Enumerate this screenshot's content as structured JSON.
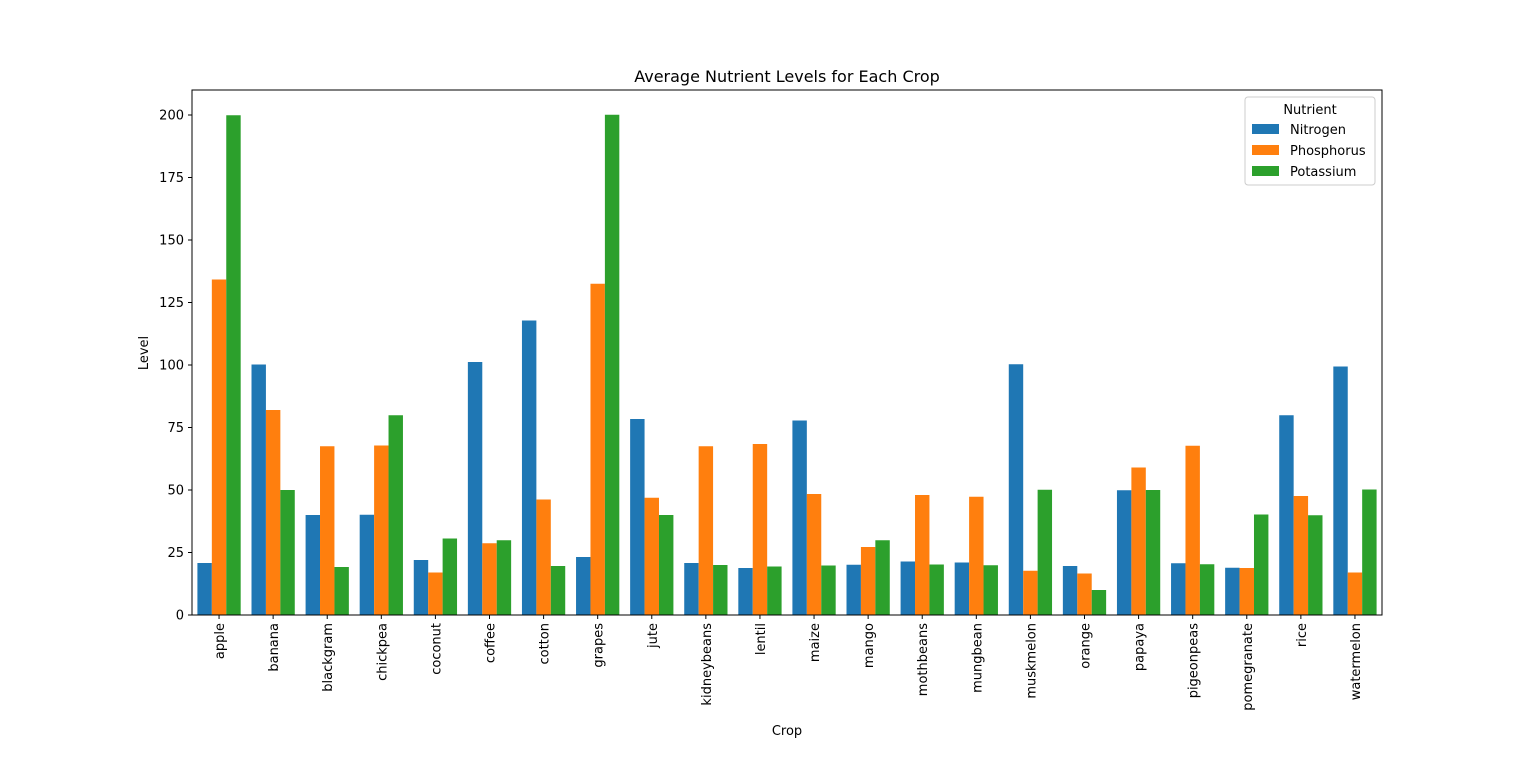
{
  "chart_data": {
    "type": "bar",
    "title": "Average Nutrient Levels for Each Crop",
    "xlabel": "Crop",
    "ylabel": "Level",
    "ylim": [
      0,
      210
    ],
    "yticks": [
      0,
      25,
      50,
      75,
      100,
      125,
      150,
      175,
      200
    ],
    "grid": false,
    "legend": {
      "title": "Nutrient",
      "placement": "top-right"
    },
    "categories": [
      "apple",
      "banana",
      "blackgram",
      "chickpea",
      "coconut",
      "coffee",
      "cotton",
      "grapes",
      "jute",
      "kidneybeans",
      "lentil",
      "maize",
      "mango",
      "mothbeans",
      "mungbean",
      "muskmelon",
      "orange",
      "papaya",
      "pigeonpeas",
      "pomegranate",
      "rice",
      "watermelon"
    ],
    "series": [
      {
        "name": "Nitrogen",
        "color": "#1f77b4",
        "values": [
          20.8,
          100.2,
          40.0,
          40.1,
          22.0,
          101.2,
          117.8,
          23.2,
          78.4,
          20.8,
          18.8,
          77.8,
          20.1,
          21.4,
          21.0,
          100.3,
          19.6,
          49.9,
          20.7,
          18.9,
          79.9,
          99.4
        ]
      },
      {
        "name": "Phosphorus",
        "color": "#ff7f0e",
        "values": [
          134.2,
          82.0,
          67.5,
          67.8,
          17.0,
          28.7,
          46.2,
          132.5,
          46.9,
          67.5,
          68.4,
          48.4,
          27.2,
          48.0,
          47.3,
          17.7,
          16.6,
          59.0,
          67.7,
          18.8,
          47.6,
          17.0
        ]
      },
      {
        "name": "Potassium",
        "color": "#2ca02c",
        "values": [
          199.9,
          50.0,
          19.2,
          79.9,
          30.6,
          29.9,
          19.6,
          200.1,
          40.0,
          20.0,
          19.4,
          19.8,
          29.9,
          20.2,
          19.9,
          50.1,
          10.0,
          50.0,
          20.3,
          40.2,
          39.9,
          50.2
        ]
      }
    ]
  }
}
